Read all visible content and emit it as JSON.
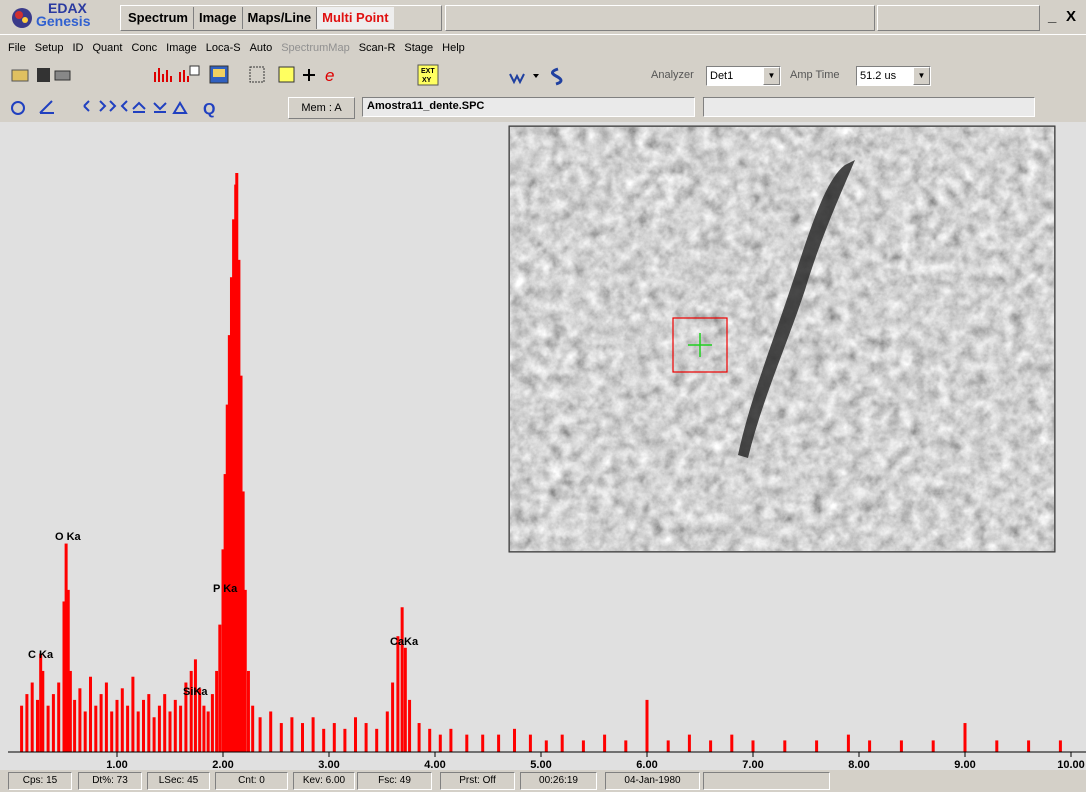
{
  "title_bar": {
    "logo": {
      "line1": "EDAX",
      "line2": "Genesis"
    },
    "tabs": [
      "Spectrum",
      "Image",
      "Maps/Line",
      "Multi Point"
    ],
    "buttons": [
      "_",
      "X"
    ]
  },
  "menu": [
    "File",
    "Setup",
    "ID",
    "Quant",
    "Conc",
    "Image",
    "Loca-S",
    "Auto",
    "SpectrumMap",
    "Scan-R",
    "Stage",
    "Help"
  ],
  "toolbar": {
    "analyzer_label": "Analyzer",
    "analyzer": "Det1",
    "amp_time_label": "Amp Time",
    "amp_time": "51.2 us",
    "memory": "Mem : A",
    "file": "Amostra11_dente.SPC",
    "icon_labels": [
      "EXT",
      "XY",
      "e",
      "Q"
    ]
  },
  "spectrum": {
    "type": "bar",
    "color": "#ff0000",
    "xlim": [
      0,
      10
    ],
    "ylim": [
      0,
      100
    ],
    "xticks": [
      {
        "value": 1,
        "label": "1.00"
      },
      {
        "value": 2,
        "label": "2.00"
      },
      {
        "value": 3,
        "label": "3.00"
      },
      {
        "value": 4,
        "label": "4.00"
      },
      {
        "value": 5,
        "label": "5.00"
      },
      {
        "value": 6,
        "label": "6.00"
      },
      {
        "value": 7,
        "label": "7.00"
      },
      {
        "value": 8,
        "label": "8.00"
      },
      {
        "value": 9,
        "label": "9.00"
      },
      {
        "value": 10,
        "label": "10.00"
      }
    ],
    "x": [
      0.1,
      0.15,
      0.2,
      0.25,
      0.28,
      0.3,
      0.35,
      0.4,
      0.45,
      0.5,
      0.52,
      0.54,
      0.56,
      0.6,
      0.65,
      0.7,
      0.75,
      0.8,
      0.85,
      0.9,
      0.95,
      1.0,
      1.05,
      1.1,
      1.15,
      1.2,
      1.25,
      1.3,
      1.35,
      1.4,
      1.45,
      1.5,
      1.55,
      1.6,
      1.65,
      1.7,
      1.74,
      1.78,
      1.82,
      1.86,
      1.9,
      1.94,
      1.97,
      2.0,
      2.02,
      2.04,
      2.06,
      2.08,
      2.1,
      2.12,
      2.13,
      2.15,
      2.17,
      2.19,
      2.21,
      2.24,
      2.28,
      2.35,
      2.45,
      2.55,
      2.65,
      2.75,
      2.85,
      2.95,
      3.05,
      3.15,
      3.25,
      3.35,
      3.45,
      3.55,
      3.6,
      3.65,
      3.69,
      3.72,
      3.76,
      3.85,
      3.95,
      4.05,
      4.15,
      4.3,
      4.45,
      4.6,
      4.75,
      4.9,
      5.05,
      5.2,
      5.4,
      5.6,
      5.8,
      6.0,
      6.2,
      6.4,
      6.6,
      6.8,
      7.0,
      7.3,
      7.6,
      7.9,
      8.1,
      8.4,
      8.7,
      9.0,
      9.3,
      9.6,
      9.9
    ],
    "values": [
      8,
      10,
      12,
      9,
      17,
      14,
      8,
      10,
      12,
      26,
      36,
      28,
      14,
      9,
      11,
      7,
      13,
      8,
      10,
      12,
      7,
      9,
      11,
      8,
      13,
      7,
      9,
      10,
      6,
      8,
      10,
      7,
      9,
      8,
      12,
      14,
      16,
      11,
      8,
      7,
      10,
      14,
      22,
      35,
      48,
      60,
      72,
      82,
      92,
      98,
      100,
      85,
      65,
      45,
      28,
      14,
      8,
      6,
      7,
      5,
      6,
      5,
      6,
      4,
      5,
      4,
      6,
      5,
      4,
      7,
      12,
      20,
      25,
      18,
      9,
      5,
      4,
      3,
      4,
      3,
      3,
      3,
      4,
      3,
      2,
      3,
      2,
      3,
      2,
      9,
      2,
      3,
      2,
      3,
      2,
      2,
      2,
      3,
      2,
      2,
      2,
      5,
      2,
      2,
      2
    ],
    "peak_labels": [
      "O Ka",
      "C Ka",
      "P Ka",
      "SiKa",
      "CaKa"
    ]
  },
  "status_bar": [
    "Cps: 15",
    "Dt%: 73",
    "LSec: 45",
    "Cnt: 0",
    "Kev: 6.00",
    "Fsc: 49",
    "Prst: Off",
    "00:26:19",
    "04-Jan-1980"
  ]
}
